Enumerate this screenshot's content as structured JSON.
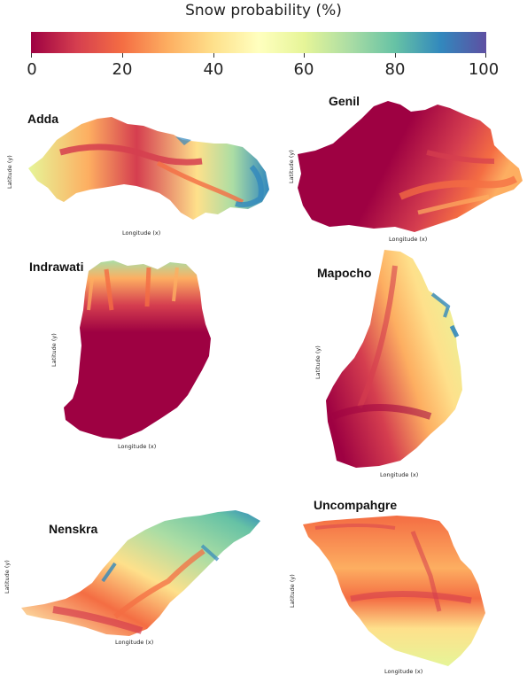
{
  "colorbar": {
    "title": "Snow probability (%)",
    "ticks": [
      "0",
      "20",
      "40",
      "60",
      "80",
      "100"
    ],
    "colors": [
      "#9e0142",
      "#d53e4f",
      "#f46d43",
      "#fdae61",
      "#fee08b",
      "#ffffbf",
      "#e6f598",
      "#abdda4",
      "#66c2a5",
      "#3288bd",
      "#5e4fa2"
    ]
  },
  "axis_labels": {
    "x": "Longitude (x)",
    "y": "Latitude (y)"
  },
  "basins": [
    {
      "name": "Adda",
      "dominant_snow_probability": "mixed, 20-90%"
    },
    {
      "name": "Genil",
      "dominant_snow_probability": "mostly 0-30%"
    },
    {
      "name": "Indrawati",
      "dominant_snow_probability": "mostly 0-15%"
    },
    {
      "name": "Mapocho",
      "dominant_snow_probability": "10-60%, higher at east edge"
    },
    {
      "name": "Nenskra",
      "dominant_snow_probability": "20-85%"
    },
    {
      "name": "Uncompahgre",
      "dominant_snow_probability": "25-55%"
    }
  ]
}
